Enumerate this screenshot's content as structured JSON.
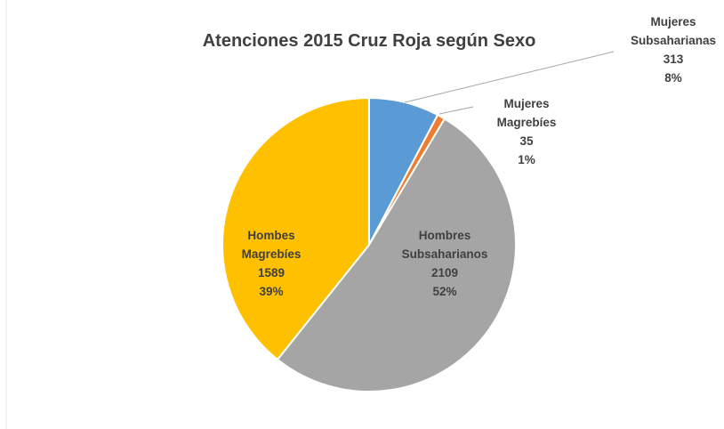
{
  "chart_data": {
    "type": "pie",
    "title": "Atenciones 2015 Cruz Roja según Sexo",
    "categories": [
      "Mujeres Subsaharianas",
      "Mujeres Magrebíes",
      "Hombres Subsaharianos",
      "Hombes Magrebíes"
    ],
    "values": [
      313,
      35,
      2109,
      1589
    ],
    "percentages": [
      "8%",
      "1%",
      "52%",
      "39%"
    ],
    "colors": [
      "#5b9bd5",
      "#ed7d31",
      "#a5a5a5",
      "#ffc000"
    ]
  }
}
